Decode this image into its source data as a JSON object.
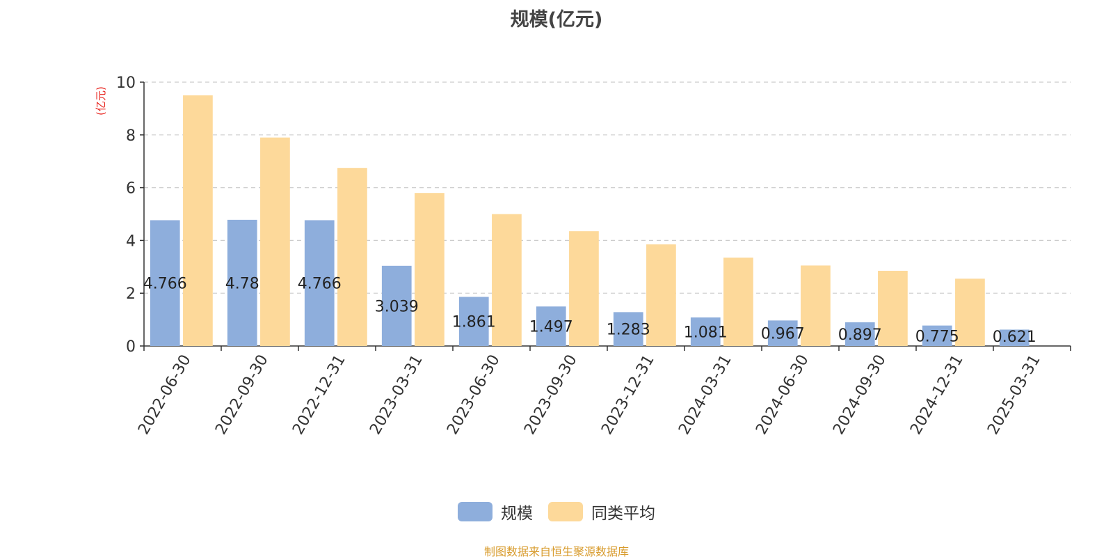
{
  "page": {
    "title": "规模(亿元)",
    "source_note": "制图数据来自恒生聚源数据库"
  },
  "colors": {
    "series_scale": "#8EAEDC",
    "series_peer_avg": "#FDD99A",
    "grid": "#CCCCCC",
    "axis": "#333333",
    "ylabel": "#E8221C",
    "source_note": "#D89B2C"
  },
  "chart_data": {
    "type": "bar",
    "title": "规模(亿元)",
    "xlabel": "",
    "ylabel": "(亿元)",
    "ylim": [
      0,
      10
    ],
    "yticks": [
      0,
      2,
      4,
      6,
      8,
      10
    ],
    "grid": true,
    "legend_position": "bottom-center",
    "categories": [
      "2022-06-30",
      "2022-09-30",
      "2022-12-31",
      "2023-03-31",
      "2023-06-30",
      "2023-09-30",
      "2023-12-31",
      "2024-03-31",
      "2024-06-30",
      "2024-09-30",
      "2024-12-31",
      "2025-03-31"
    ],
    "series": [
      {
        "name": "规模",
        "values": [
          4.766,
          4.78,
          4.766,
          3.039,
          1.861,
          1.497,
          1.283,
          1.081,
          0.967,
          0.897,
          0.775,
          0.621
        ],
        "labels": [
          "4.766",
          "4.78",
          "4.766",
          "3.039",
          "1.861",
          "1.497",
          "1.283",
          "1.081",
          "0.967",
          "0.897",
          "0.775",
          "0.621"
        ]
      },
      {
        "name": "同类平均",
        "values": [
          9.5,
          7.9,
          6.75,
          5.8,
          5.0,
          4.35,
          3.85,
          3.35,
          3.05,
          2.85,
          2.55,
          null
        ]
      }
    ]
  }
}
